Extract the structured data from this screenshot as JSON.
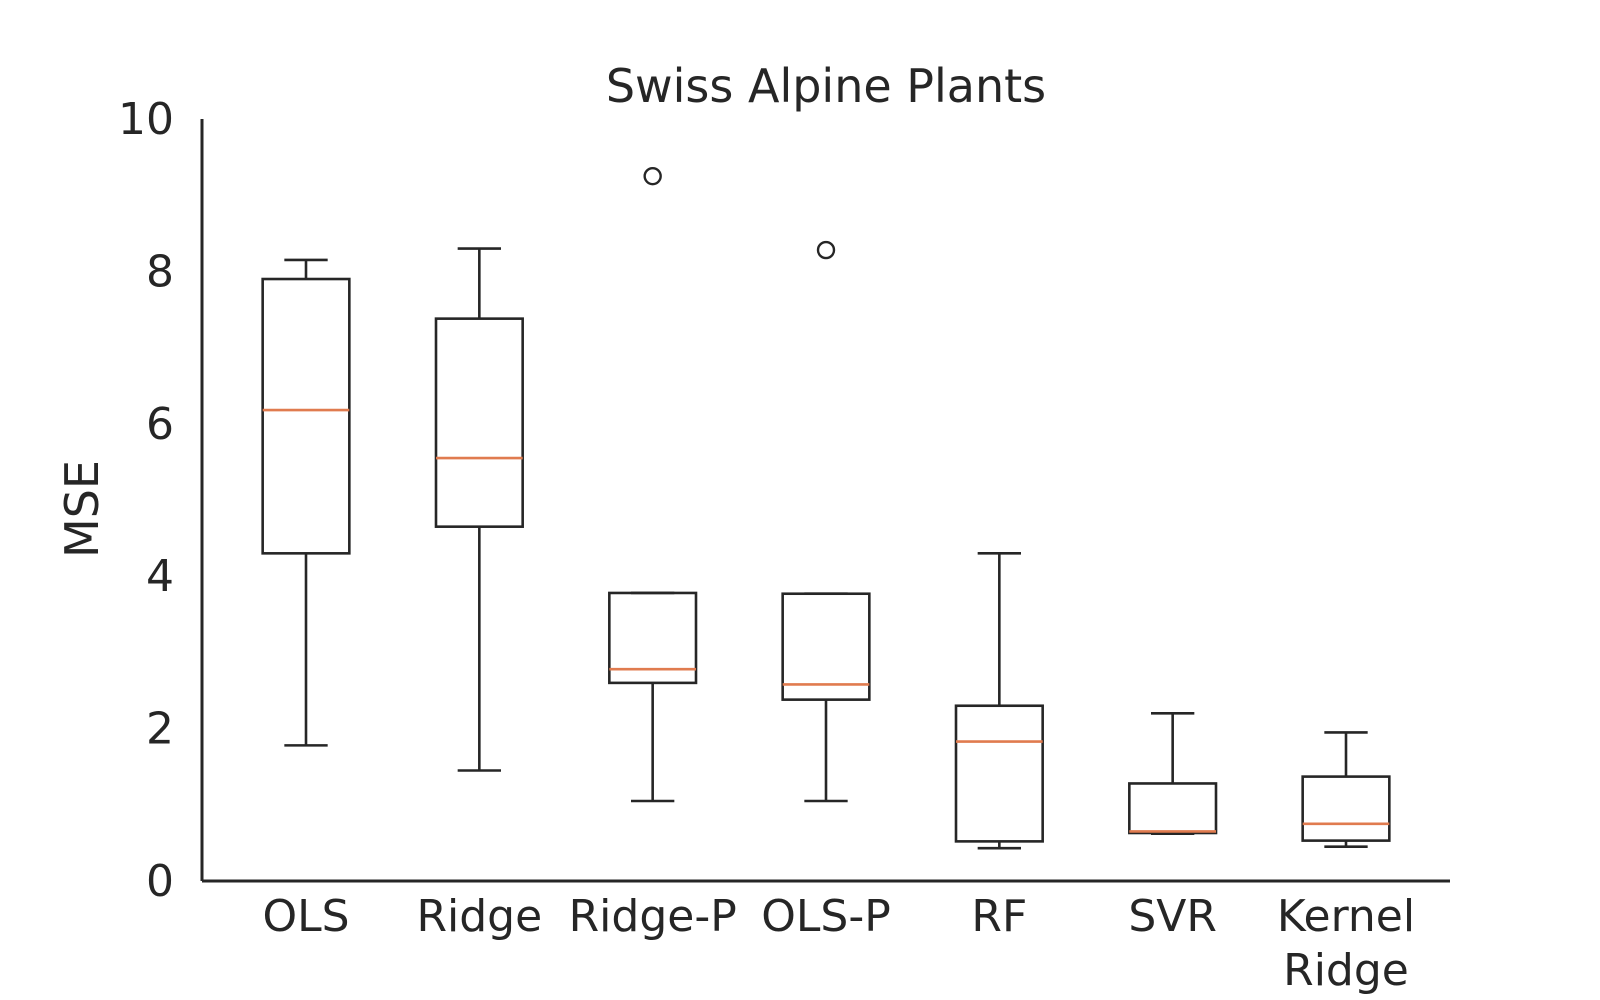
{
  "chart_data": {
    "type": "box",
    "title": "Swiss Alpine Plants",
    "xlabel": "",
    "ylabel": "MSE",
    "ylim": [
      0,
      10
    ],
    "yticks": [
      0,
      2,
      4,
      6,
      8,
      10
    ],
    "grid": false,
    "colors": {
      "box": "#262626",
      "median": "#e07b4f"
    },
    "categories": [
      "OLS",
      "Ridge",
      "Ridge-P",
      "OLS-P",
      "RF",
      "SVR",
      "Kernel Ridge"
    ],
    "boxes": [
      {
        "label": "OLS",
        "whislo": 1.78,
        "q1": 4.3,
        "median": 6.18,
        "q3": 7.9,
        "whishi": 8.15,
        "fliers": []
      },
      {
        "label": "Ridge",
        "whislo": 1.45,
        "q1": 4.65,
        "median": 5.55,
        "q3": 7.38,
        "whishi": 8.3,
        "fliers": []
      },
      {
        "label": "Ridge-P",
        "whislo": 1.05,
        "q1": 2.6,
        "median": 2.78,
        "q3": 3.78,
        "whishi": 3.78,
        "fliers": [
          9.25
        ]
      },
      {
        "label": "OLS-P",
        "whislo": 1.05,
        "q1": 2.38,
        "median": 2.58,
        "q3": 3.77,
        "whishi": 3.77,
        "fliers": [
          8.28
        ]
      },
      {
        "label": "RF",
        "whislo": 0.43,
        "q1": 0.52,
        "median": 1.83,
        "q3": 2.3,
        "whishi": 4.3,
        "fliers": []
      },
      {
        "label": "SVR",
        "whislo": 0.62,
        "q1": 0.63,
        "median": 0.65,
        "q3": 1.28,
        "whishi": 2.2,
        "fliers": []
      },
      {
        "label": "Kernel Ridge",
        "whislo": 0.45,
        "q1": 0.53,
        "median": 0.75,
        "q3": 1.37,
        "whishi": 1.95,
        "fliers": []
      }
    ]
  }
}
